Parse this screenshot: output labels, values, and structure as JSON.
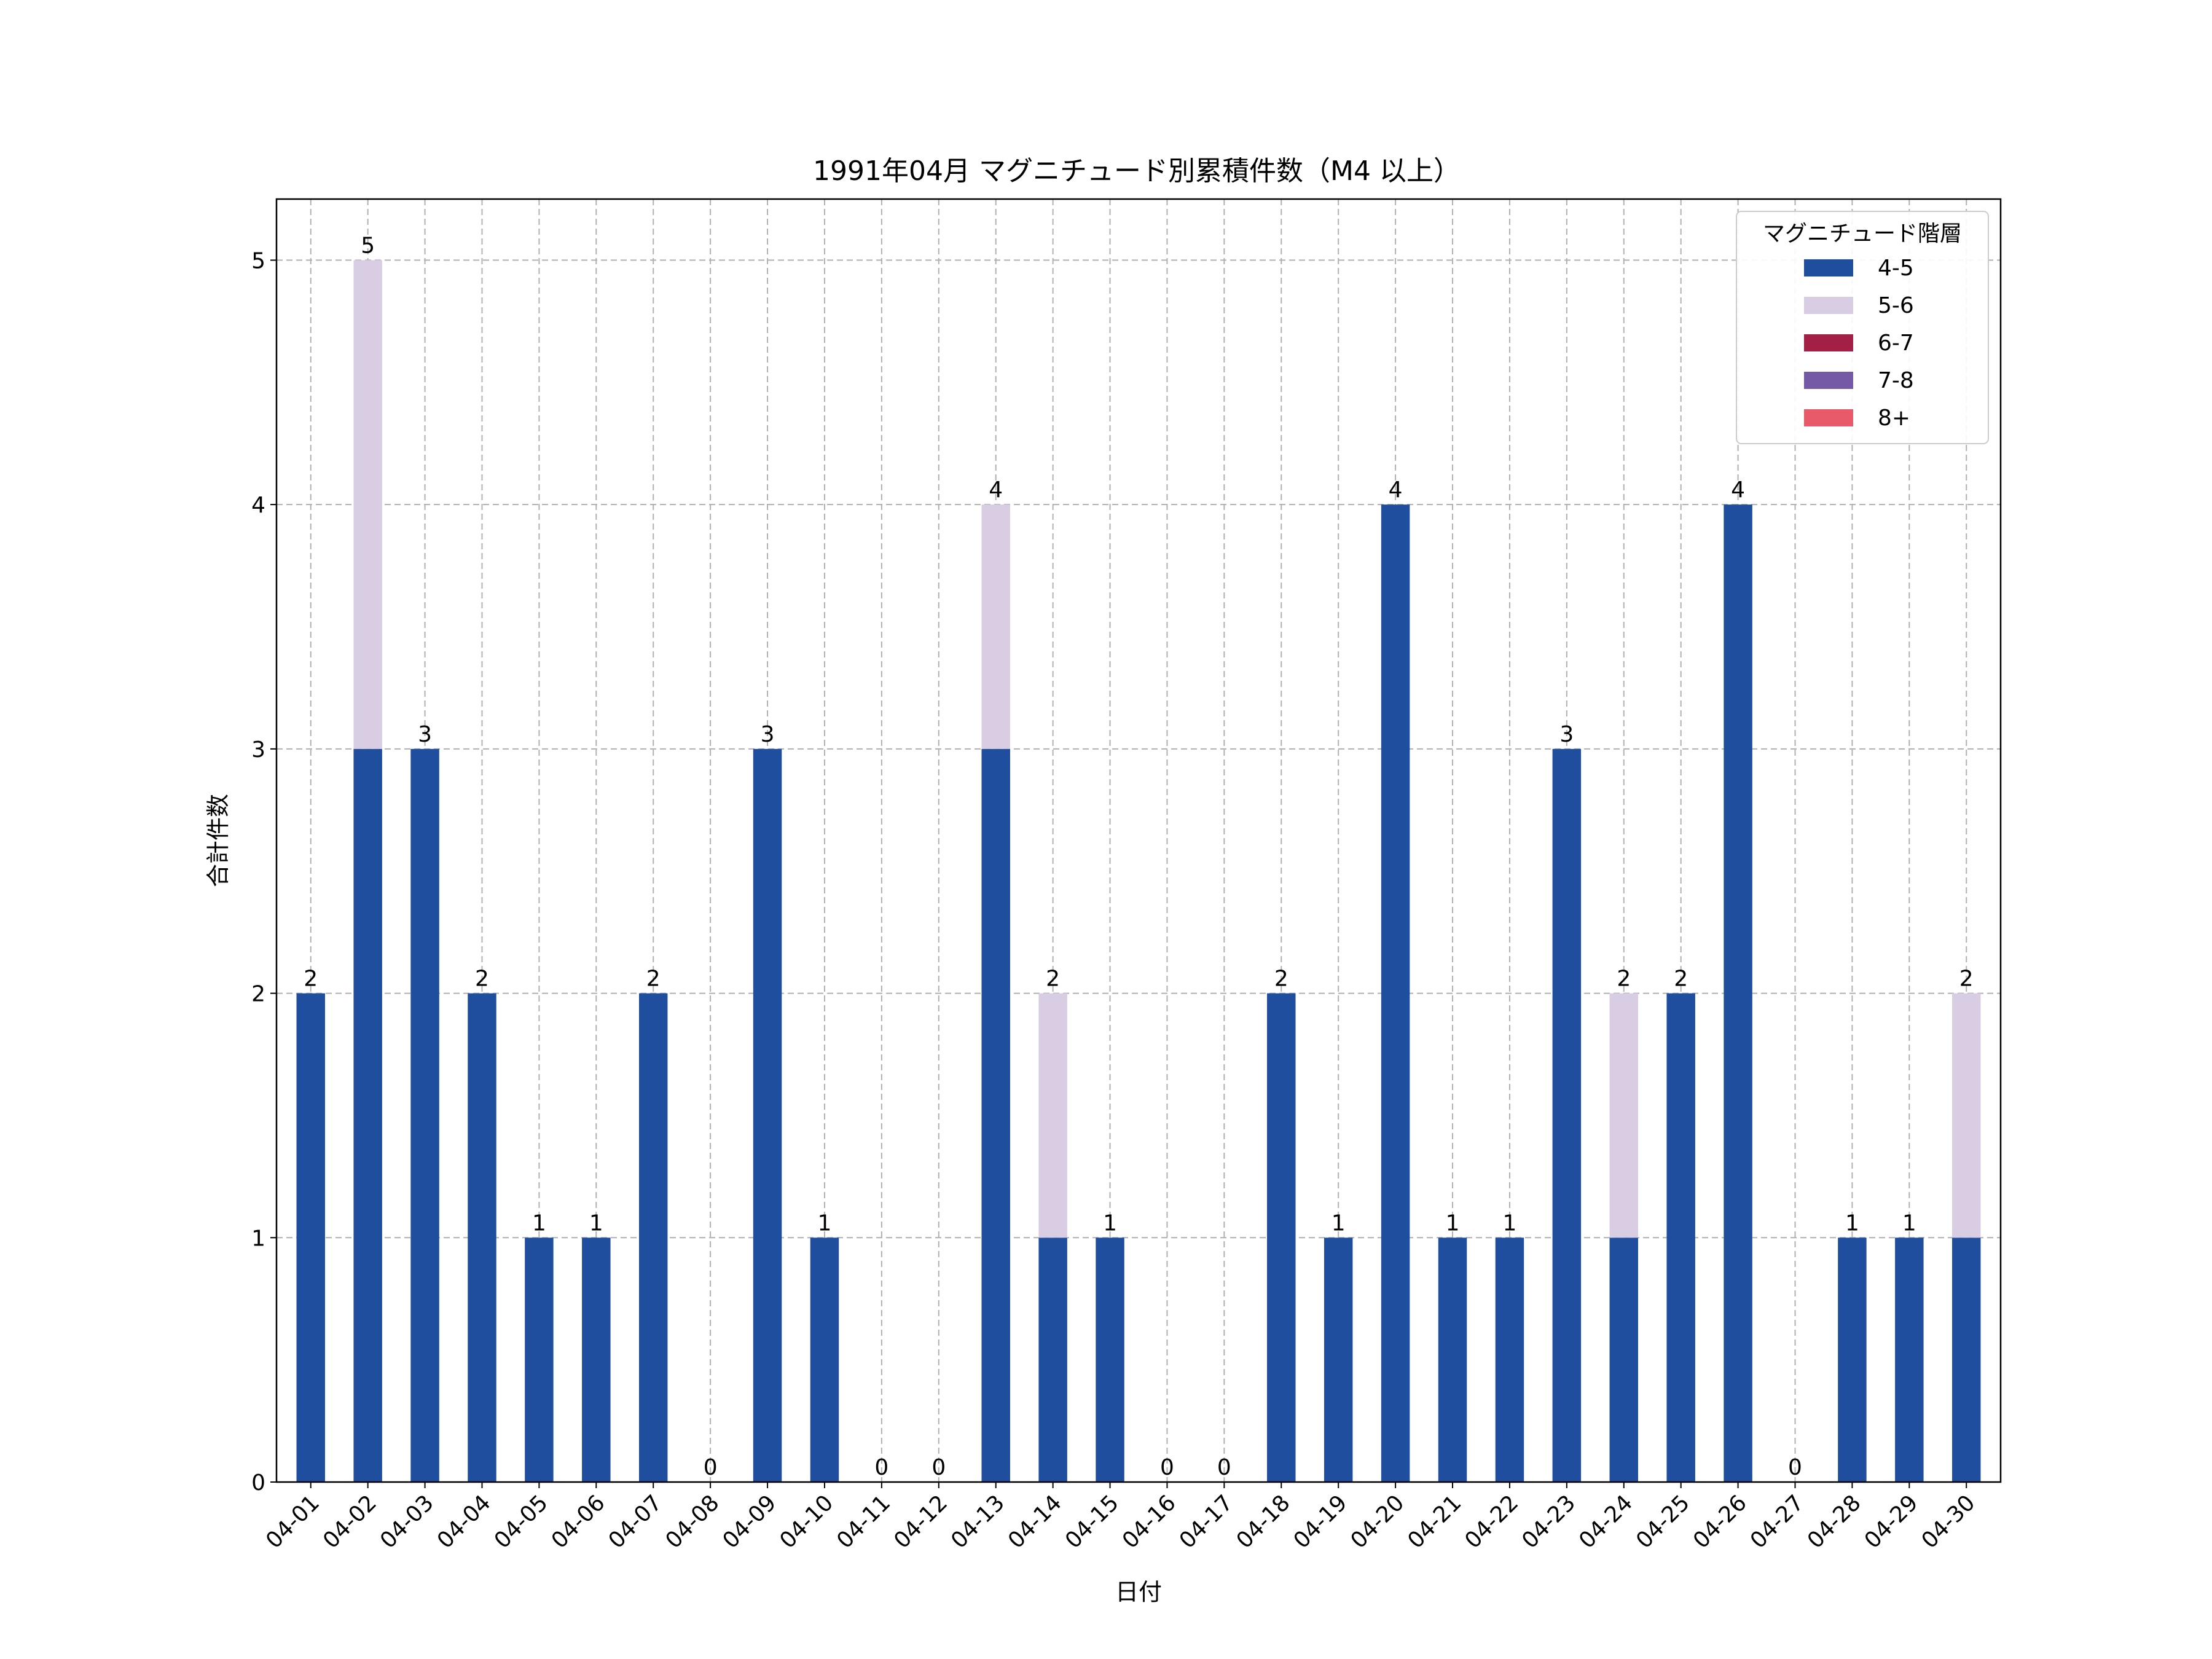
{
  "chart_data": {
    "type": "bar",
    "stacked": true,
    "title": "1991年04月 マグニチュード別累積件数（M4 以上）",
    "xlabel": "日付",
    "ylabel": "合計件数",
    "ylim": [
      0,
      5.25
    ],
    "yticks": [
      0,
      1,
      2,
      3,
      4,
      5
    ],
    "grid": true,
    "legend": {
      "title": "マグニチュード階層",
      "position": "top-right"
    },
    "categories": [
      "04-01",
      "04-02",
      "04-03",
      "04-04",
      "04-05",
      "04-06",
      "04-07",
      "04-08",
      "04-09",
      "04-10",
      "04-11",
      "04-12",
      "04-13",
      "04-14",
      "04-15",
      "04-16",
      "04-17",
      "04-18",
      "04-19",
      "04-20",
      "04-21",
      "04-22",
      "04-23",
      "04-24",
      "04-25",
      "04-26",
      "04-27",
      "04-28",
      "04-29",
      "04-30"
    ],
    "series": [
      {
        "name": "4-5",
        "color": "#1f4e9e",
        "values": [
          2,
          3,
          3,
          2,
          1,
          1,
          2,
          0,
          3,
          1,
          0,
          0,
          3,
          1,
          1,
          0,
          0,
          2,
          1,
          4,
          1,
          1,
          3,
          1,
          2,
          4,
          0,
          1,
          1,
          1
        ]
      },
      {
        "name": "5-6",
        "color": "#d9cde4",
        "values": [
          0,
          2,
          0,
          0,
          0,
          0,
          0,
          0,
          0,
          0,
          0,
          0,
          1,
          1,
          0,
          0,
          0,
          0,
          0,
          0,
          0,
          0,
          0,
          1,
          0,
          0,
          0,
          0,
          0,
          1
        ]
      },
      {
        "name": "6-7",
        "color": "#a31f45",
        "values": [
          0,
          0,
          0,
          0,
          0,
          0,
          0,
          0,
          0,
          0,
          0,
          0,
          0,
          0,
          0,
          0,
          0,
          0,
          0,
          0,
          0,
          0,
          0,
          0,
          0,
          0,
          0,
          0,
          0,
          0
        ]
      },
      {
        "name": "7-8",
        "color": "#7558a6",
        "values": [
          0,
          0,
          0,
          0,
          0,
          0,
          0,
          0,
          0,
          0,
          0,
          0,
          0,
          0,
          0,
          0,
          0,
          0,
          0,
          0,
          0,
          0,
          0,
          0,
          0,
          0,
          0,
          0,
          0,
          0
        ]
      },
      {
        "name": "8+",
        "color": "#e85a6a",
        "values": [
          0,
          0,
          0,
          0,
          0,
          0,
          0,
          0,
          0,
          0,
          0,
          0,
          0,
          0,
          0,
          0,
          0,
          0,
          0,
          0,
          0,
          0,
          0,
          0,
          0,
          0,
          0,
          0,
          0,
          0
        ]
      }
    ],
    "totals": [
      2,
      5,
      3,
      2,
      1,
      1,
      2,
      0,
      3,
      1,
      0,
      0,
      4,
      2,
      1,
      0,
      0,
      2,
      1,
      4,
      1,
      1,
      3,
      2,
      2,
      4,
      0,
      1,
      1,
      2
    ]
  }
}
